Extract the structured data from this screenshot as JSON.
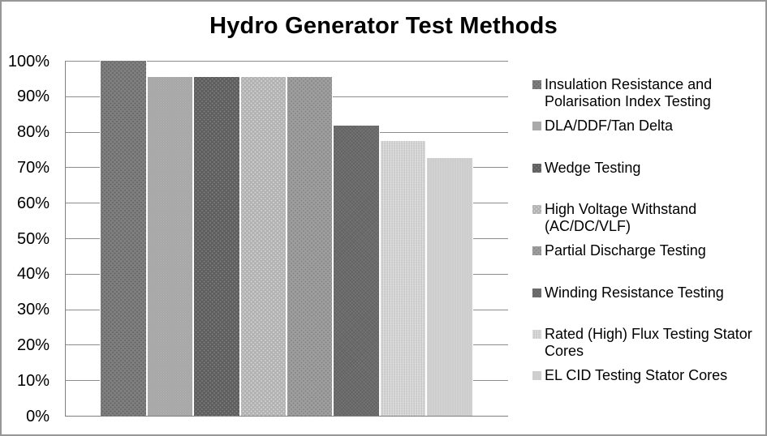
{
  "chart_data": {
    "type": "bar",
    "title": "Hydro Generator Test Methods",
    "unit": "%",
    "ylim": [
      0,
      100
    ],
    "ytick_step": 10,
    "ytick_labels": [
      "0%",
      "10%",
      "20%",
      "30%",
      "40%",
      "50%",
      "60%",
      "70%",
      "80%",
      "90%",
      "100%"
    ],
    "grid": true,
    "legend_position": "right",
    "series": [
      {
        "name": "Insulation Resistance and Polarisation Index Testing",
        "value": 100,
        "color": "#7f7f7f",
        "pattern": "pat-dot-dark"
      },
      {
        "name": "DLA/DDF/Tan Delta",
        "value": 95.5,
        "color": "#999999",
        "pattern": "pat-weave-light"
      },
      {
        "name": "Wedge Testing",
        "value": 95.5,
        "color": "#5e5e5e",
        "pattern": "pat-dot-light-on-dark"
      },
      {
        "name": "High Voltage Withstand (AC/DC/VLF)",
        "value": 95.5,
        "color": "#b2b2b2",
        "pattern": "pat-dot-white-on-light"
      },
      {
        "name": "Partial Discharge Testing",
        "value": 95.5,
        "color": "#9e9e9e",
        "pattern": "pat-dot-dark-on-mid"
      },
      {
        "name": "Winding Resistance Testing",
        "value": 81.8,
        "color": "#6b6b6b",
        "pattern": "pat-weave-dark"
      },
      {
        "name": "Rated (High) Flux Testing Stator Cores",
        "value": 77.3,
        "color": "#c9c9c9",
        "pattern": "pat-weave-verylight"
      },
      {
        "name": "EL CID Testing Stator Cores",
        "value": 72.7,
        "color": "#cdcdcd",
        "pattern": "pat-solid-light"
      }
    ]
  }
}
